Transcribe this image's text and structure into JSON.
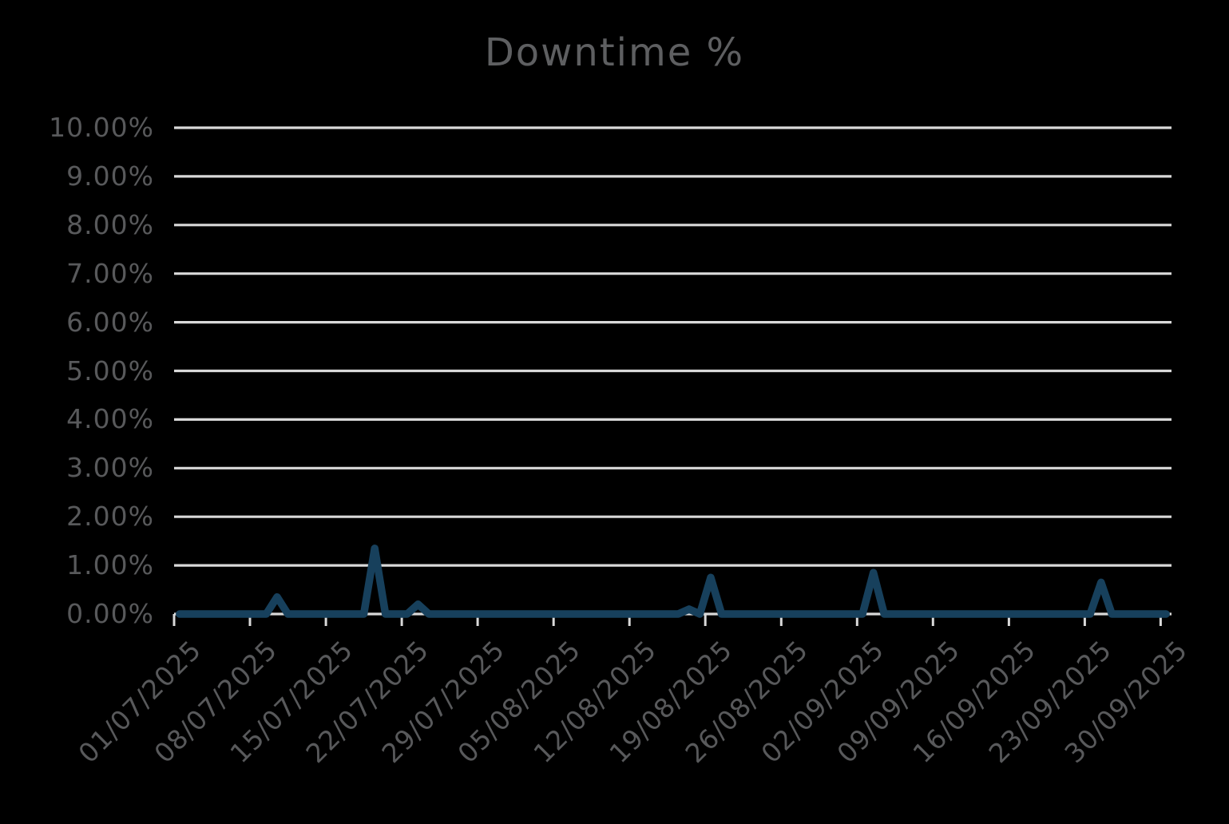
{
  "title": "Downtime %",
  "colors": {
    "background": "#000000",
    "series_line": "#17405c",
    "gridline": "#d9d9d9",
    "axis_text": "#58595b",
    "title_text": "#5e5f61"
  },
  "chart_data": {
    "type": "line",
    "title": "Downtime %",
    "series": [
      {
        "name": "Downtime %",
        "values": [
          0,
          0,
          0,
          0,
          0,
          0,
          0,
          0,
          0,
          0.35,
          0,
          0,
          0,
          0,
          0,
          0,
          0,
          0,
          1.35,
          0,
          0,
          0,
          0.2,
          0,
          0,
          0,
          0,
          0,
          0,
          0,
          0,
          0,
          0,
          0,
          0,
          0,
          0,
          0,
          0,
          0,
          0,
          0,
          0,
          0,
          0,
          0,
          0,
          0.1,
          0,
          0.75,
          0,
          0,
          0,
          0,
          0,
          0,
          0,
          0,
          0,
          0,
          0,
          0,
          0,
          0,
          0.85,
          0,
          0,
          0,
          0,
          0,
          0,
          0,
          0,
          0,
          0,
          0,
          0,
          0,
          0,
          0,
          0,
          0,
          0,
          0,
          0,
          0.65,
          0,
          0,
          0,
          0,
          0,
          0
        ]
      }
    ],
    "x_start_date": "01/07/2025",
    "x_end_date": "30/09/2025",
    "x_frequency": "daily",
    "x_tick_labels": [
      "01/07/2025",
      "08/07/2025",
      "15/07/2025",
      "22/07/2025",
      "29/07/2025",
      "05/08/2025",
      "12/08/2025",
      "19/08/2025",
      "26/08/2025",
      "02/09/2025",
      "09/09/2025",
      "16/09/2025",
      "23/09/2025",
      "30/09/2025"
    ],
    "y_tick_labels": [
      "0.00%",
      "1.00%",
      "2.00%",
      "3.00%",
      "4.00%",
      "5.00%",
      "6.00%",
      "7.00%",
      "8.00%",
      "9.00%",
      "10.00%"
    ],
    "ylim": [
      0,
      10
    ],
    "ylabel": "",
    "xlabel": "",
    "grid": "horizontal",
    "legend": "none",
    "nonzero_points": [
      {
        "date": "10/07/2025",
        "value": 0.35
      },
      {
        "date": "19/07/2025",
        "value": 1.35
      },
      {
        "date": "23/07/2025",
        "value": 0.2
      },
      {
        "date": "17/08/2025",
        "value": 0.1
      },
      {
        "date": "19/08/2025",
        "value": 0.75
      },
      {
        "date": "03/09/2025",
        "value": 0.85
      },
      {
        "date": "24/09/2025",
        "value": 0.65
      }
    ]
  }
}
